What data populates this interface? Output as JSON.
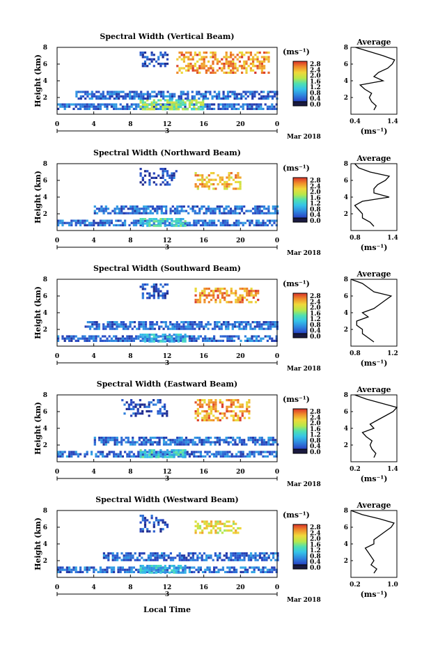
{
  "figure": {
    "xlabel": "Local Time",
    "date_text": "Mar 2018",
    "day_text": "3",
    "ylabel": "Height (km)",
    "avg_title": "Average",
    "avg_xlabel": "(ms⁻¹)",
    "cb_unit": "(ms⁻¹)",
    "cb_ticks": [
      "2.8",
      "2.4",
      "2.0",
      "1.6",
      "1.2",
      "0.8",
      "0.4",
      "0.0"
    ],
    "x_ticks": [
      "0",
      "4",
      "8",
      "12",
      "16",
      "20",
      "0"
    ],
    "y_ticks": [
      "8",
      "6",
      "4",
      "2"
    ]
  },
  "chart_data": [
    {
      "type": "heatmap",
      "title": "Spectral Width (Vertical Beam)",
      "xlim": [
        0,
        24
      ],
      "ylim": [
        0,
        8
      ],
      "xlabel": "Local Time",
      "ylabel": "Height (km)",
      "colorbar": {
        "unit": "ms-1",
        "min": 0.0,
        "max": 2.8
      },
      "features": [
        {
          "t": [
            0,
            24
          ],
          "h": [
            0.6,
            1.3
          ],
          "width": 0.5
        },
        {
          "t": [
            9,
            16
          ],
          "h": [
            0.6,
            1.8
          ],
          "width": 1.6
        },
        {
          "t": [
            2,
            24
          ],
          "h": [
            2.0,
            2.8
          ],
          "width": 0.5
        },
        {
          "t": [
            9,
            12
          ],
          "h": [
            5.8,
            7.5
          ],
          "width": 0.3
        },
        {
          "t": [
            13,
            23
          ],
          "h": [
            5.0,
            7.5
          ],
          "width": 2.4
        }
      ],
      "average": {
        "xlim": [
          0.4,
          1.4
        ],
        "xticks": [
          "0.4",
          "1.4"
        ],
        "height": [
          0.5,
          1.0,
          1.5,
          2.0,
          2.5,
          3.0,
          3.5,
          4.0,
          4.5,
          5.0,
          5.5,
          6.0,
          6.5,
          7.0,
          7.5,
          8.0
        ],
        "width": [
          0.9,
          0.95,
          0.85,
          0.8,
          0.85,
          0.7,
          0.6,
          1.1,
          0.9,
          1.0,
          1.2,
          1.3,
          1.35,
          1.1,
          0.8,
          0.5
        ]
      }
    },
    {
      "type": "heatmap",
      "title": "Spectral Width (Northward Beam)",
      "xlim": [
        0,
        24
      ],
      "ylim": [
        0,
        8
      ],
      "xlabel": "Local Time",
      "ylabel": "Height (km)",
      "colorbar": {
        "unit": "ms-1",
        "min": 0.0,
        "max": 2.8
      },
      "features": [
        {
          "t": [
            0,
            24
          ],
          "h": [
            0.6,
            1.3
          ],
          "width": 0.5
        },
        {
          "t": [
            9,
            14
          ],
          "h": [
            0.6,
            1.5
          ],
          "width": 1.2
        },
        {
          "t": [
            4,
            24
          ],
          "h": [
            2.0,
            3.0
          ],
          "width": 0.5
        },
        {
          "t": [
            9,
            13
          ],
          "h": [
            5.5,
            7.5
          ],
          "width": 0.3
        },
        {
          "t": [
            15,
            20
          ],
          "h": [
            5.0,
            7.0
          ],
          "width": 2.2
        }
      ],
      "average": {
        "xlim": [
          0.8,
          1.4
        ],
        "xticks": [
          "0.8",
          "1.4"
        ],
        "height": [
          0.5,
          1.0,
          1.5,
          2.0,
          2.5,
          3.0,
          3.5,
          4.0,
          4.5,
          5.0,
          5.5,
          6.0,
          6.5,
          7.0,
          7.5,
          8.0
        ],
        "width": [
          1.1,
          1.05,
          0.95,
          0.95,
          0.9,
          0.85,
          0.95,
          1.3,
          1.1,
          1.1,
          1.15,
          1.25,
          1.3,
          1.05,
          0.9,
          0.85
        ]
      }
    },
    {
      "type": "heatmap",
      "title": "Spectral Width (Southward Beam)",
      "xlim": [
        0,
        24
      ],
      "ylim": [
        0,
        8
      ],
      "xlabel": "Local Time",
      "ylabel": "Height (km)",
      "colorbar": {
        "unit": "ms-1",
        "min": 0.0,
        "max": 2.8
      },
      "features": [
        {
          "t": [
            0,
            24
          ],
          "h": [
            0.6,
            1.3
          ],
          "width": 0.5
        },
        {
          "t": [
            9,
            14
          ],
          "h": [
            0.6,
            1.5
          ],
          "width": 1.0
        },
        {
          "t": [
            3,
            24
          ],
          "h": [
            2.0,
            3.0
          ],
          "width": 0.5
        },
        {
          "t": [
            9,
            12
          ],
          "h": [
            5.8,
            7.5
          ],
          "width": 0.3
        },
        {
          "t": [
            15,
            22
          ],
          "h": [
            5.2,
            7.0
          ],
          "width": 2.4
        }
      ],
      "average": {
        "xlim": [
          0.8,
          1.2
        ],
        "xticks": [
          "0.8",
          "1.2"
        ],
        "height": [
          0.5,
          1.0,
          1.5,
          2.0,
          2.5,
          3.0,
          3.5,
          4.0,
          4.5,
          5.0,
          5.5,
          6.0,
          6.5,
          7.0,
          7.5,
          8.0
        ],
        "width": [
          1.0,
          0.95,
          0.9,
          0.9,
          0.85,
          0.85,
          0.95,
          0.9,
          1.0,
          1.05,
          1.1,
          1.15,
          1.0,
          0.95,
          0.9,
          0.8
        ]
      }
    },
    {
      "type": "heatmap",
      "title": "Spectral Width (Eastward Beam)",
      "xlim": [
        0,
        24
      ],
      "ylim": [
        0,
        8
      ],
      "xlabel": "Local Time",
      "ylabel": "Height (km)",
      "colorbar": {
        "unit": "ms-1",
        "min": 0.0,
        "max": 2.8
      },
      "features": [
        {
          "t": [
            0,
            24
          ],
          "h": [
            0.6,
            1.3
          ],
          "width": 0.5
        },
        {
          "t": [
            9,
            14
          ],
          "h": [
            0.6,
            1.5
          ],
          "width": 1.2
        },
        {
          "t": [
            4,
            24
          ],
          "h": [
            2.0,
            3.0
          ],
          "width": 0.5
        },
        {
          "t": [
            7,
            12
          ],
          "h": [
            5.5,
            7.5
          ],
          "width": 0.3
        },
        {
          "t": [
            15,
            21
          ],
          "h": [
            5.0,
            7.5
          ],
          "width": 2.4
        }
      ],
      "average": {
        "xlim": [
          0.2,
          1.4
        ],
        "xticks": [
          "0.2",
          "1.4"
        ],
        "height": [
          0.5,
          1.0,
          1.5,
          2.0,
          2.5,
          3.0,
          3.5,
          4.0,
          4.5,
          5.0,
          5.5,
          6.0,
          6.5,
          7.0,
          7.5,
          8.0
        ],
        "width": [
          0.8,
          0.85,
          0.75,
          0.7,
          0.75,
          0.6,
          0.5,
          0.8,
          0.7,
          0.9,
          1.1,
          1.3,
          1.4,
          1.0,
          0.6,
          0.3
        ]
      }
    },
    {
      "type": "heatmap",
      "title": "Spectral Width (Westward Beam)",
      "xlim": [
        0,
        24
      ],
      "ylim": [
        0,
        8
      ],
      "xlabel": "Local Time",
      "ylabel": "Height (km)",
      "colorbar": {
        "unit": "ms-1",
        "min": 0.0,
        "max": 2.8
      },
      "features": [
        {
          "t": [
            0,
            24
          ],
          "h": [
            0.6,
            1.3
          ],
          "width": 0.5
        },
        {
          "t": [
            9,
            14
          ],
          "h": [
            0.6,
            1.5
          ],
          "width": 1.0
        },
        {
          "t": [
            5,
            24
          ],
          "h": [
            2.0,
            3.0
          ],
          "width": 0.5
        },
        {
          "t": [
            9,
            12
          ],
          "h": [
            5.5,
            7.5
          ],
          "width": 0.3
        },
        {
          "t": [
            15,
            20
          ],
          "h": [
            5.2,
            6.8
          ],
          "width": 2.0
        }
      ],
      "average": {
        "xlim": [
          0.2,
          1.0
        ],
        "xticks": [
          "0.2",
          "1.0"
        ],
        "height": [
          0.5,
          1.0,
          1.5,
          2.0,
          2.5,
          3.0,
          3.5,
          4.0,
          4.5,
          5.0,
          5.5,
          6.0,
          6.5,
          7.0,
          7.5,
          8.0
        ],
        "width": [
          0.6,
          0.65,
          0.55,
          0.6,
          0.55,
          0.5,
          0.45,
          0.6,
          0.6,
          0.7,
          0.8,
          0.9,
          0.95,
          0.7,
          0.4,
          0.2
        ]
      }
    }
  ]
}
